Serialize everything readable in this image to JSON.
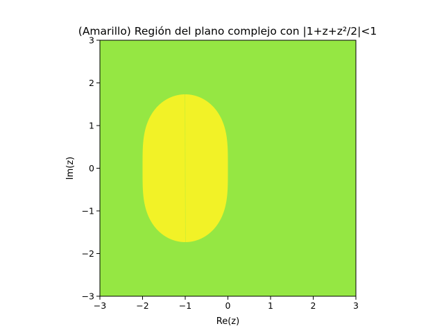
{
  "chart_data": {
    "type": "heatmap",
    "title": "(Amarillo) Región del plano complejo con |1+z+z²/2|<1",
    "xlabel": "Re(z)",
    "ylabel": "Im(z)",
    "xlim": [
      -3,
      3
    ],
    "ylim": [
      -3,
      3
    ],
    "xticks": [
      -3,
      -2,
      -1,
      0,
      1,
      2,
      3
    ],
    "yticks": [
      -3,
      -2,
      -1,
      0,
      1,
      2,
      3
    ],
    "xtick_labels": [
      "−3",
      "−2",
      "−1",
      "0",
      "1",
      "2",
      "3"
    ],
    "ytick_labels": [
      "−3",
      "−2",
      "−1",
      "0",
      "1",
      "2",
      "3"
    ],
    "region_condition": "|1+z+z²/2|<1",
    "colors": {
      "inside": "#f2f227",
      "outside": "#95e743"
    },
    "grid": false,
    "legend": "none"
  }
}
